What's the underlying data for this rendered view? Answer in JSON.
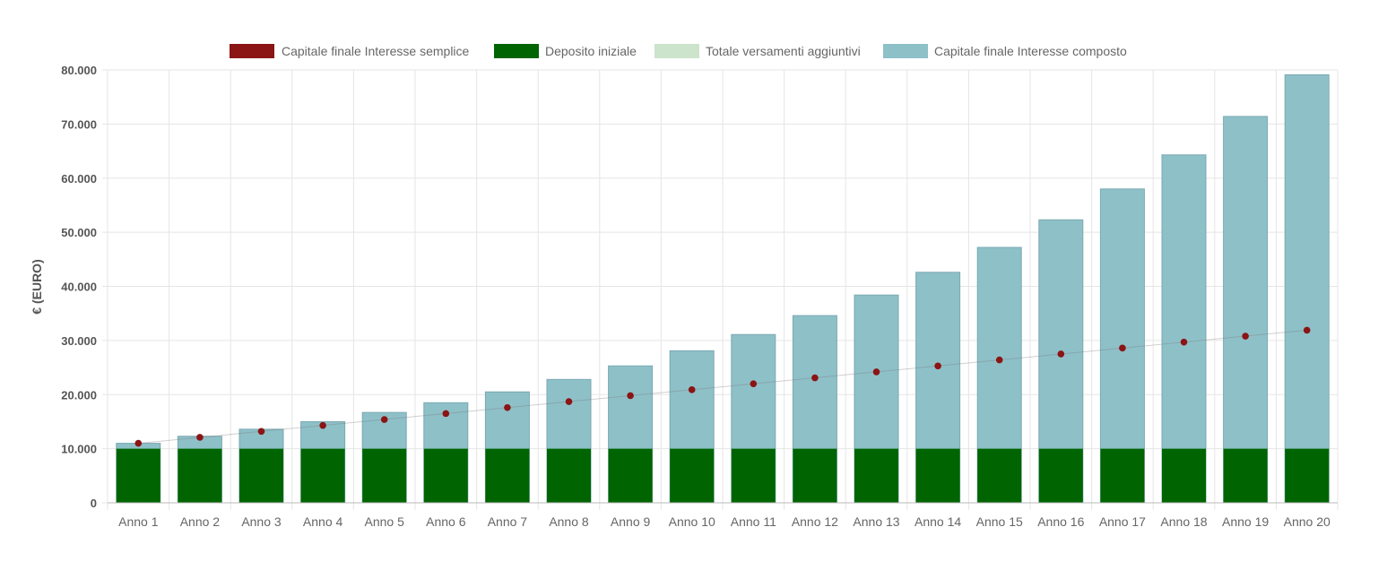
{
  "colors": {
    "simple_interest": "#8b1414",
    "initial_deposit": "#006400",
    "additional_payments": "#cce3cc",
    "compound_interest": "#8ec0c8",
    "compound_border": "#7aa9b0",
    "grid": "#e5e5e5",
    "axis_text": "#555555"
  },
  "chart_data": {
    "type": "bar",
    "title": "",
    "xlabel": "",
    "ylabel": "€ (EURO)",
    "ylim": [
      0,
      80000
    ],
    "yticks": [
      0,
      10000,
      20000,
      30000,
      40000,
      50000,
      60000,
      70000,
      80000
    ],
    "ytick_labels": [
      "0",
      "10.000",
      "20.000",
      "30.000",
      "40.000",
      "50.000",
      "60.000",
      "70.000",
      "80.000"
    ],
    "grid": true,
    "legend_position": "top-center",
    "categories": [
      "Anno 1",
      "Anno 2",
      "Anno 3",
      "Anno 4",
      "Anno 5",
      "Anno 6",
      "Anno 7",
      "Anno 8",
      "Anno 9",
      "Anno 10",
      "Anno 11",
      "Anno 12",
      "Anno 13",
      "Anno 14",
      "Anno 15",
      "Anno 16",
      "Anno 17",
      "Anno 18",
      "Anno 19",
      "Anno 20"
    ],
    "series": [
      {
        "name": "Capitale finale Interesse semplice",
        "kind": "line-points",
        "values": [
          11000,
          12100,
          13200,
          14300,
          15400,
          16500,
          17600,
          18700,
          19800,
          20900,
          22000,
          23100,
          24200,
          25300,
          26400,
          27500,
          28600,
          29700,
          30800,
          31900
        ]
      },
      {
        "name": "Deposito iniziale",
        "kind": "bar",
        "values": [
          10000,
          10000,
          10000,
          10000,
          10000,
          10000,
          10000,
          10000,
          10000,
          10000,
          10000,
          10000,
          10000,
          10000,
          10000,
          10000,
          10000,
          10000,
          10000,
          10000
        ]
      },
      {
        "name": "Totale versamenti aggiuntivi",
        "kind": "bar",
        "values": [
          0,
          0,
          0,
          0,
          0,
          0,
          0,
          0,
          0,
          0,
          0,
          0,
          0,
          0,
          0,
          0,
          0,
          0,
          0,
          0
        ]
      },
      {
        "name": "Capitale finale Interesse composto",
        "kind": "bar",
        "values": [
          11000,
          12300,
          13600,
          15000,
          16700,
          18500,
          20500,
          22800,
          25300,
          28100,
          31100,
          34600,
          38400,
          42600,
          47200,
          52300,
          58000,
          64300,
          71400,
          79100
        ]
      }
    ]
  }
}
